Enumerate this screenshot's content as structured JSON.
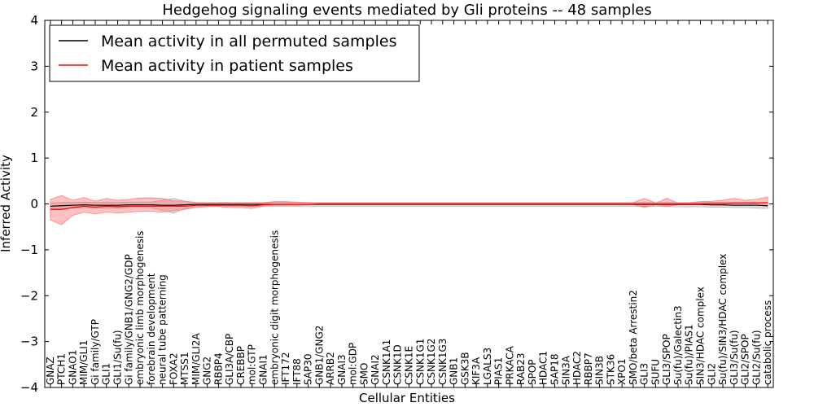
{
  "chart_data": {
    "type": "line",
    "title": "Hedgehog signaling events mediated by Gli proteins -- 48 samples",
    "xlabel": "Cellular Entities",
    "ylabel": "Inferred Activity",
    "ylim": [
      -4,
      4
    ],
    "yticks": [
      "4",
      "3",
      "2",
      "1",
      "0",
      "−1",
      "−2",
      "−3",
      "−4"
    ],
    "ytick_values": [
      4,
      3,
      2,
      1,
      0,
      -1,
      -2,
      -3,
      -4
    ],
    "legend": {
      "placement": "top-left",
      "entries": [
        {
          "label": "Mean activity in all permuted samples",
          "color": "#000000"
        },
        {
          "label": "Mean activity in patient samples",
          "color": "#ff0000"
        }
      ]
    },
    "categories": [
      "GNAZ",
      "PTCH1",
      "GNAO1",
      "MIM/GLI1",
      "Gi family/GTP",
      "GLI1",
      "GLI1/Su(fu)",
      "Gi family/GNB1/GNG2/GDP",
      "embryonic limb morphogenesis",
      "forebrain development",
      "neural tube patterning",
      "FOXA2",
      "MTSS1",
      "MIM/GLI2A",
      "GNG2",
      "RBBP4",
      "GLI3A/CBP",
      "CREBBP",
      "mol:GTP",
      "GNAI1",
      "embryonic digit morphogenesis",
      "IFT172",
      "IFT88",
      "SAP30",
      "GNB1/GNG2",
      "ARRB2",
      "GNAI3",
      "mol:GDP",
      "SMO",
      "GNAI2",
      "CSNK1A1",
      "CSNK1D",
      "CSNK1E",
      "CSNK1G1",
      "CSNK1G2",
      "CSNK1G3",
      "GNB1",
      "GSK3B",
      "KIF3A",
      "LGALS3",
      "PIAS1",
      "PRKACA",
      "RAB23",
      "SPOP",
      "HDAC1",
      "SAP18",
      "SIN3A",
      "HDAC2",
      "RBBP7",
      "SIN3B",
      "STK36",
      "XPO1",
      "SMO/beta Arrestin2",
      "GLI3",
      "SUFU",
      "GLI3/SPOP",
      "Su(fu)/Galectin3",
      "Su(fu)/PIAS1",
      "SIN3/HDAC complex",
      "GLI2",
      "Su(fu)/SIN3/HDAC complex",
      "GLI3/Su(fu)",
      "GLI2/SPOP",
      "GLI2/Su(fu)",
      "catabolic process"
    ],
    "series": [
      {
        "name": "Mean activity in all permuted samples",
        "color": "#000000",
        "values": [
          -0.05,
          -0.04,
          -0.03,
          -0.02,
          -0.03,
          -0.03,
          -0.03,
          -0.02,
          -0.02,
          -0.02,
          -0.03,
          -0.03,
          -0.02,
          -0.01,
          -0.01,
          -0.01,
          -0.01,
          -0.01,
          -0.01,
          -0.01,
          -0.01,
          -0.01,
          -0.01,
          -0.01,
          -0.01,
          -0.01,
          -0.01,
          -0.01,
          -0.01,
          -0.01,
          -0.01,
          -0.01,
          -0.01,
          -0.01,
          -0.01,
          -0.01,
          -0.01,
          -0.01,
          -0.01,
          -0.01,
          -0.01,
          -0.01,
          -0.01,
          -0.01,
          -0.01,
          -0.01,
          -0.01,
          -0.01,
          -0.01,
          -0.01,
          -0.01,
          -0.01,
          -0.01,
          -0.01,
          -0.01,
          -0.01,
          -0.01,
          -0.01,
          -0.01,
          -0.02,
          -0.02,
          -0.03,
          -0.03,
          -0.03,
          -0.04
        ],
        "lower": [
          -0.1,
          -0.1,
          -0.09,
          -0.08,
          -0.09,
          -0.09,
          -0.09,
          -0.08,
          -0.08,
          -0.08,
          -0.14,
          -0.2,
          -0.1,
          -0.05,
          -0.05,
          -0.05,
          -0.05,
          -0.05,
          -0.05,
          -0.05,
          -0.05,
          -0.05,
          -0.05,
          -0.05,
          -0.05,
          -0.05,
          -0.05,
          -0.05,
          -0.05,
          -0.05,
          -0.05,
          -0.05,
          -0.05,
          -0.05,
          -0.05,
          -0.05,
          -0.05,
          -0.05,
          -0.05,
          -0.05,
          -0.05,
          -0.05,
          -0.05,
          -0.05,
          -0.05,
          -0.05,
          -0.05,
          -0.05,
          -0.05,
          -0.05,
          -0.05,
          -0.05,
          -0.05,
          -0.05,
          -0.05,
          -0.06,
          -0.06,
          -0.06,
          -0.06,
          -0.07,
          -0.07,
          -0.08,
          -0.08,
          -0.09,
          -0.1
        ],
        "upper": [
          0.02,
          0.03,
          0.03,
          0.04,
          0.03,
          0.03,
          0.03,
          0.04,
          0.04,
          0.04,
          0.08,
          0.12,
          0.06,
          0.03,
          0.03,
          0.03,
          0.03,
          0.03,
          0.03,
          0.03,
          0.03,
          0.03,
          0.03,
          0.03,
          0.03,
          0.03,
          0.03,
          0.03,
          0.03,
          0.03,
          0.03,
          0.03,
          0.03,
          0.03,
          0.03,
          0.03,
          0.03,
          0.03,
          0.03,
          0.03,
          0.03,
          0.03,
          0.03,
          0.03,
          0.03,
          0.03,
          0.03,
          0.03,
          0.03,
          0.03,
          0.03,
          0.03,
          0.03,
          0.03,
          0.03,
          0.03,
          0.03,
          0.03,
          0.03,
          0.03,
          0.03,
          0.02,
          0.02,
          0.02,
          0.02
        ]
      },
      {
        "name": "Mean activity in patient samples",
        "color": "#ff0000",
        "values": [
          -0.12,
          -0.12,
          -0.08,
          -0.05,
          -0.07,
          -0.05,
          -0.06,
          -0.05,
          -0.05,
          -0.05,
          -0.05,
          -0.05,
          -0.05,
          -0.03,
          -0.03,
          -0.03,
          -0.03,
          -0.03,
          -0.04,
          -0.02,
          -0.01,
          -0.01,
          -0.01,
          -0.01,
          0.0,
          0.0,
          0.0,
          0.0,
          0.0,
          0.0,
          0.0,
          0.0,
          0.0,
          0.0,
          0.0,
          0.0,
          0.0,
          0.0,
          0.0,
          0.0,
          0.0,
          0.0,
          0.0,
          0.0,
          0.0,
          0.0,
          0.0,
          0.0,
          0.0,
          0.0,
          0.0,
          0.0,
          0.0,
          0.0,
          0.0,
          0.0,
          0.0,
          0.0,
          0.0,
          0.01,
          0.01,
          0.02,
          0.02,
          0.02,
          0.03
        ],
        "lower": [
          -0.35,
          -0.45,
          -0.25,
          -0.18,
          -0.22,
          -0.18,
          -0.2,
          -0.18,
          -0.16,
          -0.16,
          -0.18,
          -0.15,
          -0.12,
          -0.08,
          -0.06,
          -0.06,
          -0.08,
          -0.08,
          -0.1,
          -0.05,
          -0.03,
          -0.03,
          -0.03,
          -0.02,
          -0.01,
          -0.01,
          -0.01,
          -0.01,
          -0.01,
          -0.01,
          -0.01,
          -0.01,
          -0.01,
          -0.01,
          -0.01,
          -0.01,
          -0.01,
          -0.01,
          -0.01,
          -0.01,
          -0.01,
          -0.01,
          -0.01,
          -0.01,
          -0.01,
          -0.01,
          -0.01,
          -0.01,
          -0.01,
          -0.01,
          -0.01,
          -0.01,
          -0.01,
          -0.08,
          -0.02,
          -0.05,
          -0.02,
          -0.02,
          -0.02,
          -0.03,
          -0.03,
          -0.02,
          -0.02,
          -0.03,
          -0.05
        ],
        "upper": [
          0.1,
          0.18,
          0.08,
          0.14,
          0.06,
          0.12,
          0.08,
          0.1,
          0.13,
          0.13,
          0.12,
          0.07,
          0.06,
          0.03,
          0.02,
          0.03,
          0.03,
          0.02,
          0.02,
          0.03,
          0.05,
          0.05,
          0.04,
          0.03,
          0.02,
          0.02,
          0.02,
          0.02,
          0.02,
          0.02,
          0.02,
          0.02,
          0.02,
          0.02,
          0.02,
          0.02,
          0.02,
          0.02,
          0.02,
          0.02,
          0.02,
          0.02,
          0.02,
          0.02,
          0.02,
          0.02,
          0.02,
          0.02,
          0.02,
          0.02,
          0.02,
          0.02,
          0.03,
          0.12,
          0.02,
          0.12,
          0.02,
          0.03,
          0.05,
          0.06,
          0.08,
          0.12,
          0.08,
          0.1,
          0.15
        ]
      }
    ]
  }
}
